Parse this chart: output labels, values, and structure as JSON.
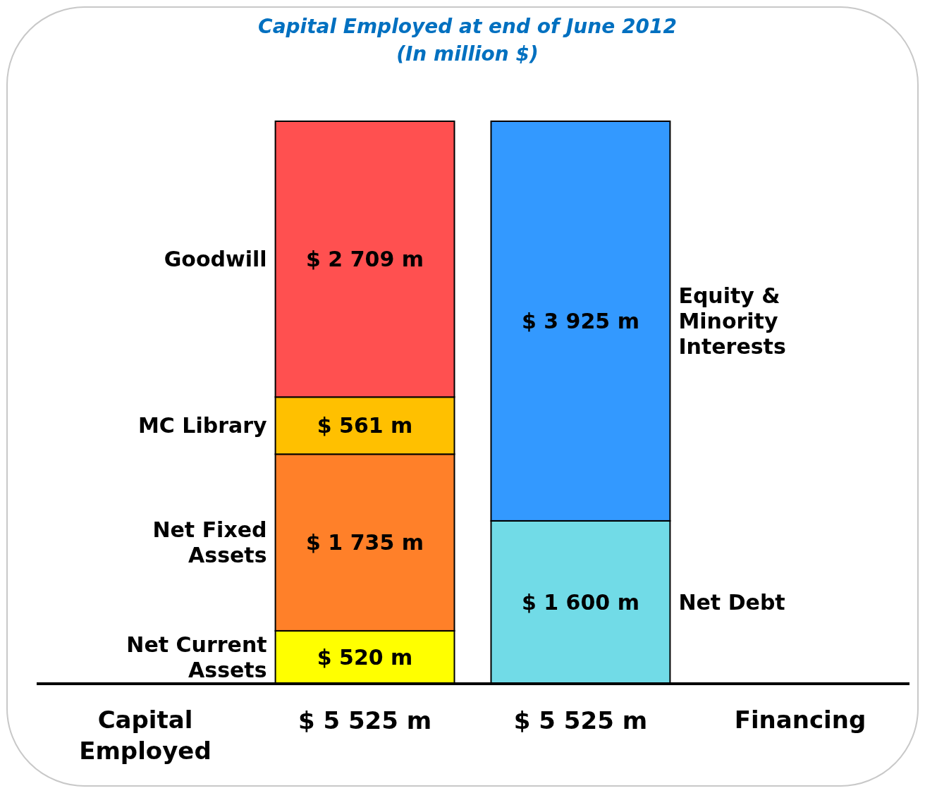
{
  "chart_data": {
    "type": "bar",
    "title": "Capital Employed at end of June 2012",
    "subtitle": "(In million $)",
    "stacked": true,
    "categories": [
      "Capital Employed",
      "Financing"
    ],
    "totals": [
      "$ 5 525 m",
      "$ 5 525 m"
    ],
    "series": [
      {
        "name": "Net Current Assets",
        "color": "#ffff00",
        "values": [
          520,
          null
        ],
        "value_labels": [
          "$ 520 m",
          null
        ]
      },
      {
        "name": "Net Fixed Assets",
        "color": "#ff8029",
        "values": [
          1735,
          null
        ],
        "value_labels": [
          "$ 1 735 m",
          null
        ]
      },
      {
        "name": "MC Library",
        "color": "#ffc000",
        "values": [
          561,
          null
        ],
        "value_labels": [
          "$ 561 m",
          null
        ]
      },
      {
        "name": "Goodwill",
        "color": "#ff5050",
        "values": [
          2709,
          null
        ],
        "value_labels": [
          "$ 2 709 m",
          null
        ]
      },
      {
        "name": "Net Debt",
        "color": "#71dbe7",
        "values": [
          null,
          1600
        ],
        "value_labels": [
          null,
          "$ 1 600 m"
        ]
      },
      {
        "name": "Equity & Minority Interests",
        "color": "#3399ff",
        "values": [
          null,
          3925
        ],
        "value_labels": [
          null,
          "$ 3 925 m"
        ]
      }
    ]
  }
}
